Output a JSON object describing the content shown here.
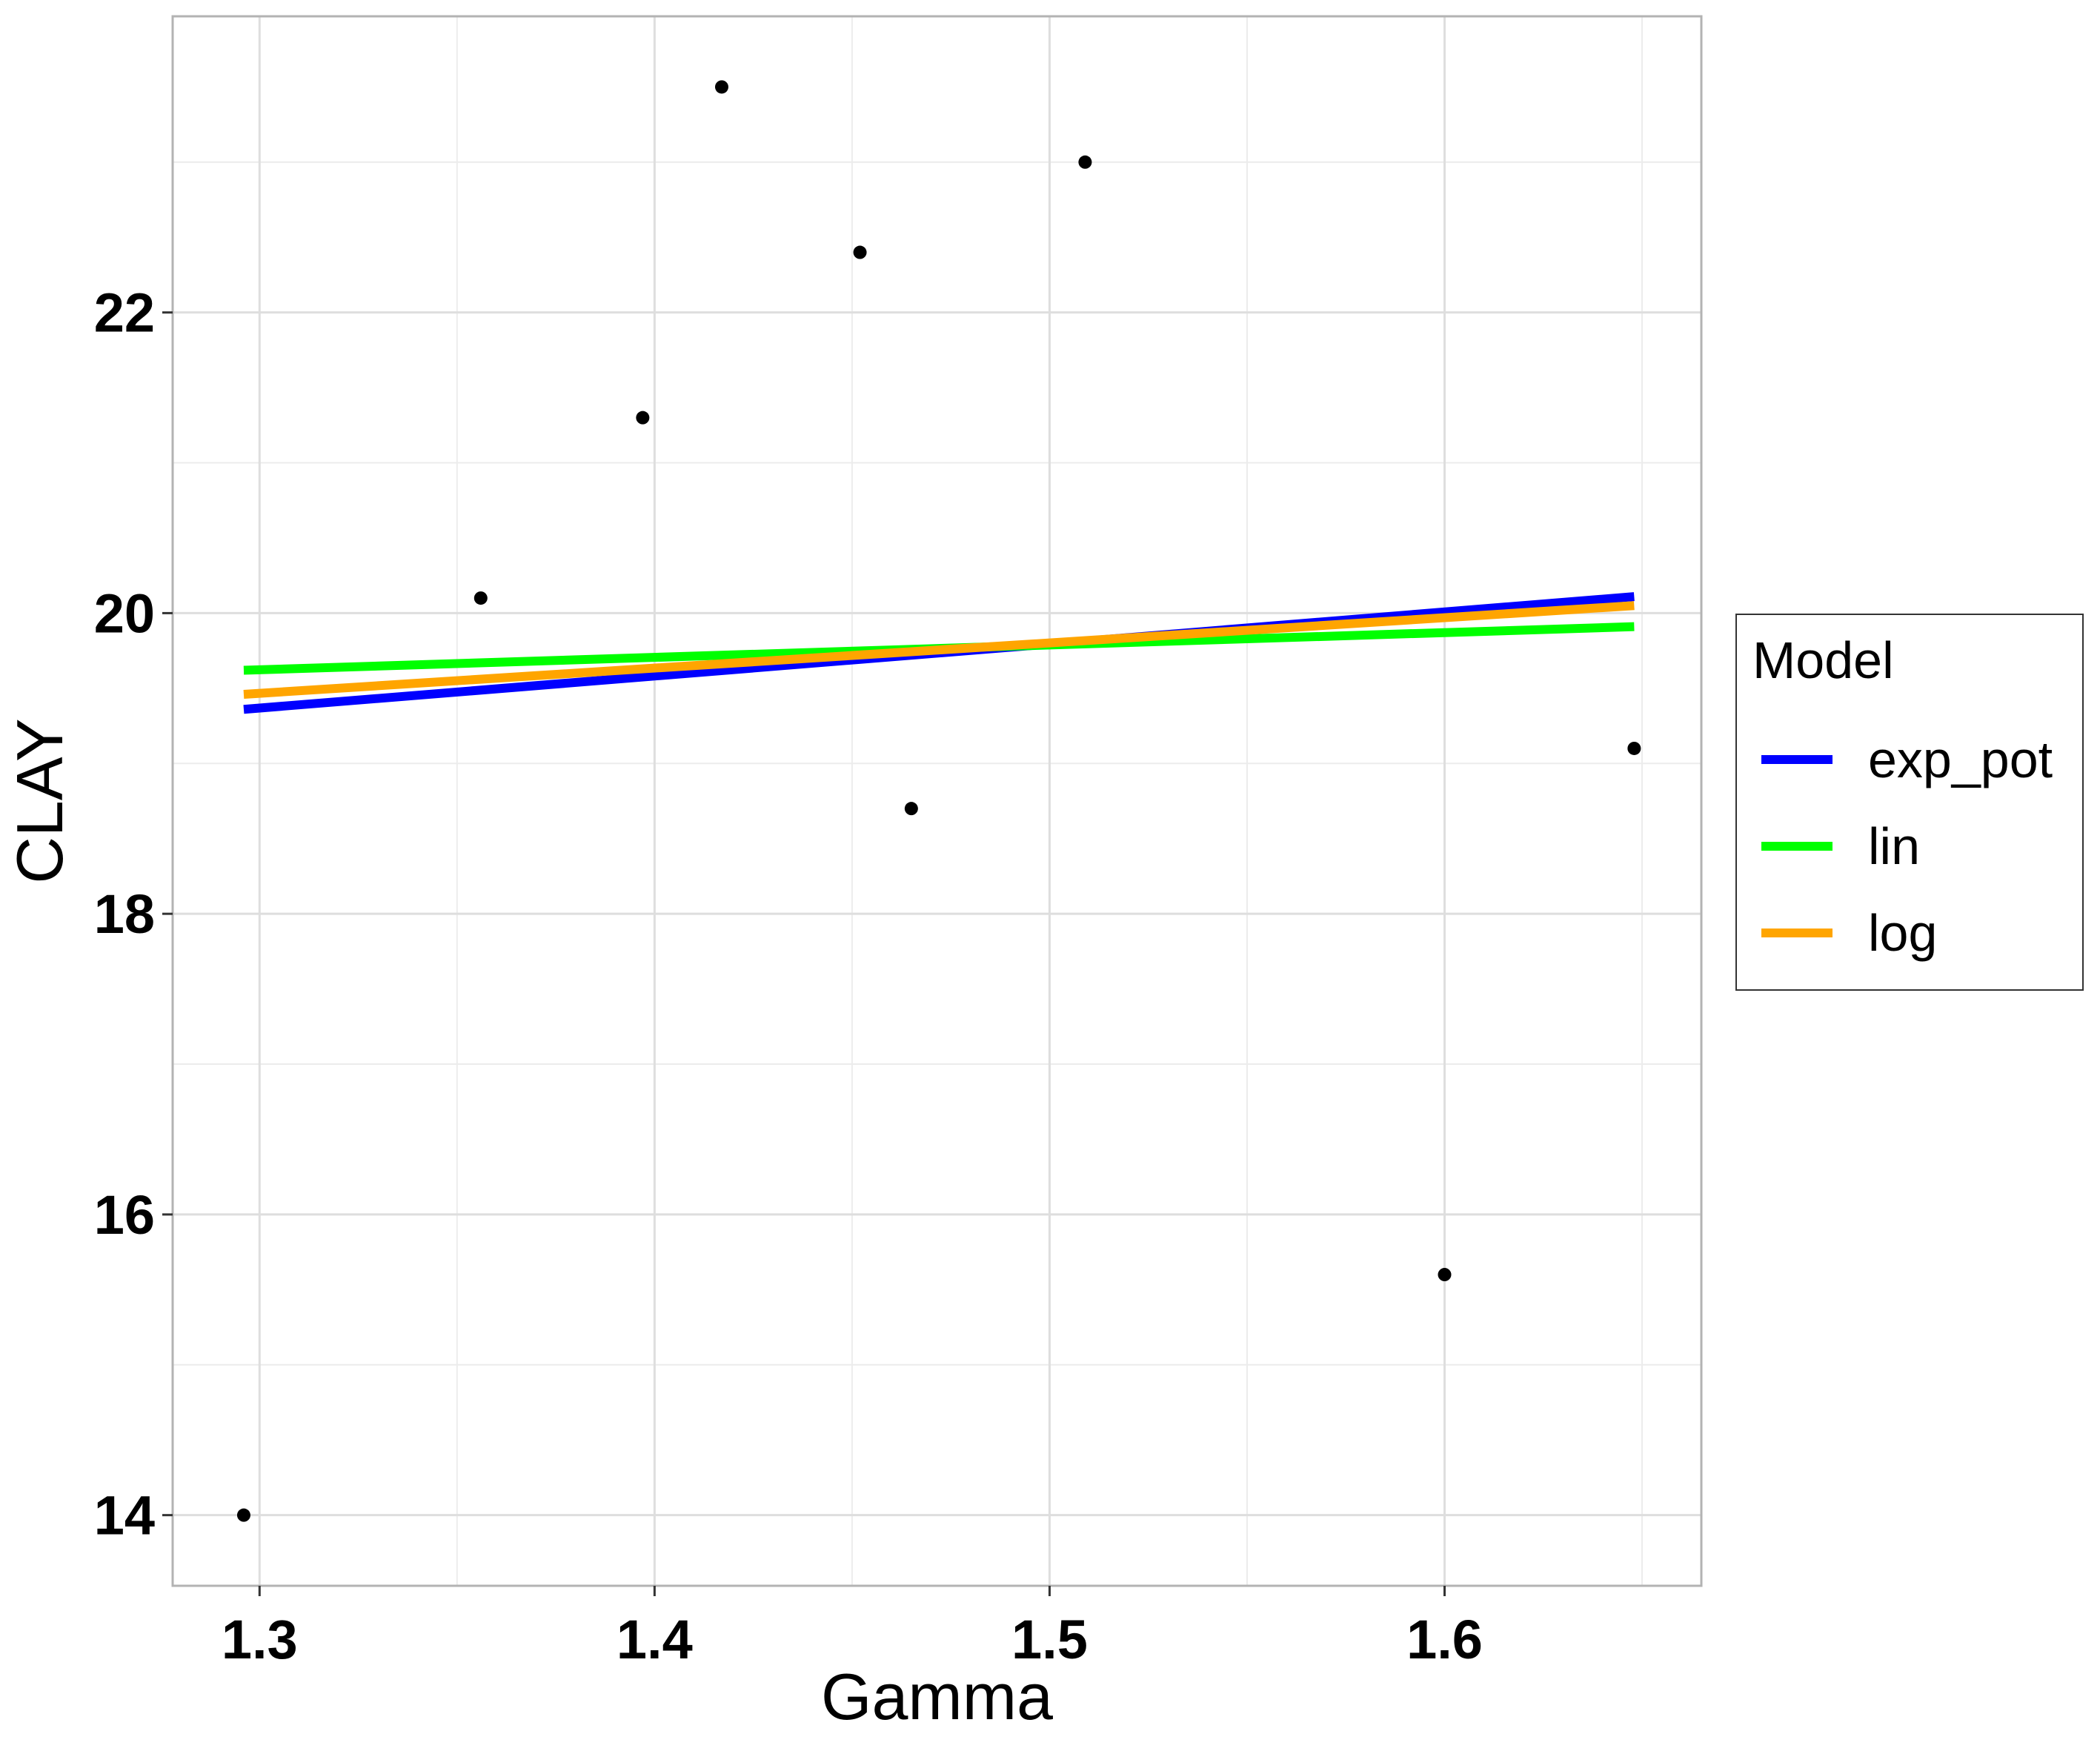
{
  "chart_data": {
    "type": "scatter",
    "title": "",
    "xlabel": "Gamma",
    "ylabel": "CLAY",
    "xlim": [
      1.278,
      1.665
    ],
    "ylim": [
      13.53,
      23.97
    ],
    "x_ticks": [
      1.3,
      1.4,
      1.5,
      1.6
    ],
    "x_tick_labels": [
      "1.3",
      "1.4",
      "1.5",
      "1.6"
    ],
    "y_ticks": [
      14,
      16,
      18,
      20,
      22
    ],
    "y_tick_labels": [
      "14",
      "16",
      "18",
      "20",
      "22"
    ],
    "grid": true,
    "points": [
      {
        "x": 1.296,
        "y": 14.0
      },
      {
        "x": 1.356,
        "y": 20.1
      },
      {
        "x": 1.397,
        "y": 21.3
      },
      {
        "x": 1.417,
        "y": 23.5
      },
      {
        "x": 1.452,
        "y": 22.4
      },
      {
        "x": 1.465,
        "y": 18.7
      },
      {
        "x": 1.509,
        "y": 23.0
      },
      {
        "x": 1.6,
        "y": 15.6
      },
      {
        "x": 1.648,
        "y": 19.1
      }
    ],
    "series": [
      {
        "name": "exp_pot",
        "color": "#0000ff",
        "x": [
          1.296,
          1.648
        ],
        "y": [
          19.36,
          20.11
        ]
      },
      {
        "name": "lin",
        "color": "#00ff00",
        "x": [
          1.296,
          1.648
        ],
        "y": [
          19.62,
          19.91
        ]
      },
      {
        "name": "log",
        "color": "#ffa500",
        "x": [
          1.296,
          1.648
        ],
        "y": [
          19.46,
          20.05
        ]
      }
    ],
    "legend": {
      "title": "Model",
      "placement": "right",
      "entries": [
        "exp_pot",
        "lin",
        "log"
      ]
    }
  }
}
